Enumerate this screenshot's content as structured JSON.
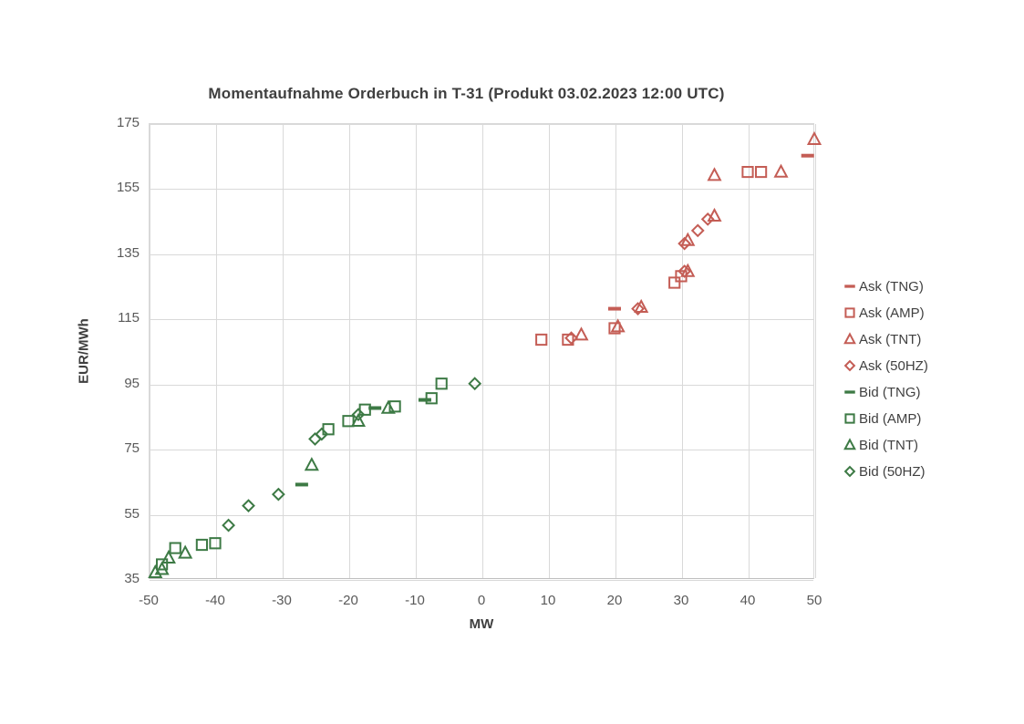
{
  "chart_data": {
    "type": "scatter",
    "title": "Momentaufnahme Orderbuch in T-31 (Produkt 03.02.2023 12:00 UTC)",
    "xlabel": "MW",
    "ylabel": "EUR/MWh",
    "xlim": [
      -50,
      50
    ],
    "ylim": [
      35,
      175
    ],
    "x_ticks": [
      -50,
      -40,
      -30,
      -20,
      -10,
      0,
      10,
      20,
      30,
      40,
      50
    ],
    "y_ticks": [
      35,
      55,
      75,
      95,
      115,
      135,
      155,
      175
    ],
    "grid": true,
    "legend_position": "right",
    "colors": {
      "ask": "#c45d55",
      "bid": "#3d7a45"
    },
    "series": [
      {
        "name": "Ask (TNG)",
        "marker": "dash",
        "color": "#c45d55",
        "points": [
          [
            20,
            118
          ],
          [
            49,
            165
          ]
        ]
      },
      {
        "name": "Ask (AMP)",
        "marker": "square",
        "color": "#c45d55",
        "points": [
          [
            9,
            108.5
          ],
          [
            13,
            108.5
          ],
          [
            20,
            112
          ],
          [
            29,
            126
          ],
          [
            30,
            128
          ],
          [
            40,
            160
          ],
          [
            42,
            160
          ]
        ]
      },
      {
        "name": "Ask (TNT)",
        "marker": "triangle",
        "color": "#c45d55",
        "points": [
          [
            15,
            110
          ],
          [
            20.5,
            112.5
          ],
          [
            24,
            118.5
          ],
          [
            31,
            129.5
          ],
          [
            31,
            139
          ],
          [
            35,
            146.5
          ],
          [
            35,
            159
          ],
          [
            45,
            160
          ],
          [
            50,
            170
          ]
        ]
      },
      {
        "name": "Ask (50HZ)",
        "marker": "diamond",
        "color": "#c45d55",
        "points": [
          [
            13.5,
            109
          ],
          [
            23.5,
            118
          ],
          [
            30.5,
            129.5
          ],
          [
            30.5,
            138
          ],
          [
            32.5,
            142
          ],
          [
            34,
            145.5
          ]
        ]
      },
      {
        "name": "Bid (TNG)",
        "marker": "dash",
        "color": "#3d7a45",
        "points": [
          [
            -27,
            64
          ],
          [
            -16,
            87.5
          ],
          [
            -8.5,
            90
          ]
        ]
      },
      {
        "name": "Bid (AMP)",
        "marker": "square",
        "color": "#3d7a45",
        "points": [
          [
            -48,
            39.5
          ],
          [
            -46,
            44.5
          ],
          [
            -42,
            45.5
          ],
          [
            -40,
            46
          ],
          [
            -23,
            81
          ],
          [
            -20,
            83.5
          ],
          [
            -17.5,
            87
          ],
          [
            -13,
            88
          ],
          [
            -7.5,
            90.5
          ],
          [
            -6,
            95
          ]
        ]
      },
      {
        "name": "Bid (TNT)",
        "marker": "triangle",
        "color": "#3d7a45",
        "points": [
          [
            -49,
            37
          ],
          [
            -48,
            38
          ],
          [
            -47,
            41.5
          ],
          [
            -44.5,
            43
          ],
          [
            -25.5,
            70
          ],
          [
            -18.5,
            83.5
          ],
          [
            -14,
            87.5
          ]
        ]
      },
      {
        "name": "Bid (50HZ)",
        "marker": "diamond",
        "color": "#3d7a45",
        "points": [
          [
            -38,
            51.5
          ],
          [
            -35,
            57.5
          ],
          [
            -30.5,
            61
          ],
          [
            -25,
            78
          ],
          [
            -24,
            79.5
          ],
          [
            -18.5,
            85.5
          ],
          [
            -1,
            95
          ]
        ]
      }
    ]
  }
}
